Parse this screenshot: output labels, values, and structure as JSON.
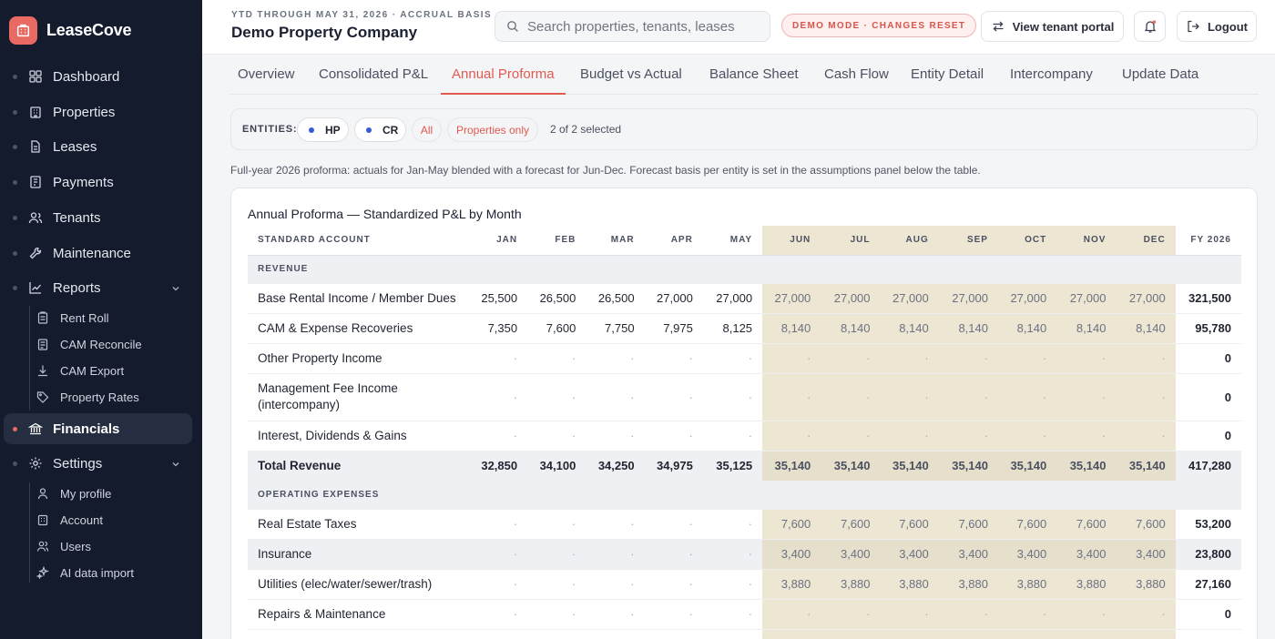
{
  "app": {
    "name": "LeaseCove",
    "accent": "#e86a62",
    "sidebar_bg": "#141b2d"
  },
  "sidebar": {
    "items": [
      {
        "label": "Dashboard",
        "icon": "grid-icon"
      },
      {
        "label": "Properties",
        "icon": "building-icon"
      },
      {
        "label": "Leases",
        "icon": "document-icon"
      },
      {
        "label": "Payments",
        "icon": "receipt-icon"
      },
      {
        "label": "Tenants",
        "icon": "users-icon"
      },
      {
        "label": "Maintenance",
        "icon": "wrench-icon"
      },
      {
        "label": "Reports",
        "icon": "chart-line-icon"
      },
      {
        "label": "Financials",
        "icon": "bank-icon"
      },
      {
        "label": "Settings",
        "icon": "gear-icon"
      }
    ],
    "reports_sub": [
      {
        "label": "Rent Roll",
        "icon": "clipboard-icon"
      },
      {
        "label": "CAM Reconcile",
        "icon": "clipboard-icon"
      },
      {
        "label": "CAM Export",
        "icon": "download-icon"
      },
      {
        "label": "Property Rates",
        "icon": "tag-icon"
      }
    ],
    "settings_sub": [
      {
        "label": "My profile",
        "icon": "user-icon"
      },
      {
        "label": "Account",
        "icon": "building-icon"
      },
      {
        "label": "Users",
        "icon": "users-icon"
      },
      {
        "label": "AI data import",
        "icon": "sparkle-icon"
      }
    ]
  },
  "header": {
    "subtitle": "YTD THROUGH MAY 31, 2026 · ACCRUAL BASIS",
    "title": "Demo Property Company",
    "search_placeholder": "Search properties, tenants, leases",
    "demo_badge": "DEMO MODE · CHANGES RESET",
    "tenant_portal": "View tenant portal",
    "logout": "Logout"
  },
  "tabs": [
    {
      "label": "Overview"
    },
    {
      "label": "Consolidated P&L"
    },
    {
      "label": "Annual Proforma",
      "active": true
    },
    {
      "label": "Budget vs Actual"
    },
    {
      "label": "Balance Sheet"
    },
    {
      "label": "Cash Flow"
    },
    {
      "label": "Entity Detail"
    },
    {
      "label": "Intercompany"
    },
    {
      "label": "Update Data"
    }
  ],
  "entities": {
    "label": "ENTITIES:",
    "chips": [
      "HP",
      "CR"
    ],
    "all_label": "All",
    "properties_only_label": "Properties only",
    "selected_text": "2 of 2 selected"
  },
  "note": "Full-year 2026 proforma: actuals for Jan-May blended with a forecast for Jun-Dec. Forecast basis per entity is set in the assumptions panel below the table.",
  "table": {
    "title": "Annual Proforma — Standardized P&L by Month",
    "account_header": "STANDARD ACCOUNT",
    "months": [
      "JAN",
      "FEB",
      "MAR",
      "APR",
      "MAY",
      "JUN",
      "JUL",
      "AUG",
      "SEP",
      "OCT",
      "NOV",
      "DEC"
    ],
    "fy_header": "FY 2026",
    "forecast_start_index": 5,
    "forecast_color": "#ede6d3",
    "rows": [
      {
        "type": "section",
        "label": "REVENUE"
      },
      {
        "type": "row",
        "label": "Base Rental Income / Member Dues",
        "values": [
          "25,500",
          "26,500",
          "26,500",
          "27,000",
          "27,000",
          "27,000",
          "27,000",
          "27,000",
          "27,000",
          "27,000",
          "27,000",
          "27,000"
        ],
        "fy": "321,500"
      },
      {
        "type": "row",
        "label": "CAM & Expense Recoveries",
        "values": [
          "7,350",
          "7,600",
          "7,750",
          "7,975",
          "8,125",
          "8,140",
          "8,140",
          "8,140",
          "8,140",
          "8,140",
          "8,140",
          "8,140"
        ],
        "fy": "95,780"
      },
      {
        "type": "row",
        "label": "Other Property Income",
        "values": [
          "·",
          "·",
          "·",
          "·",
          "·",
          "·",
          "·",
          "·",
          "·",
          "·",
          "·",
          "·"
        ],
        "fy": "0"
      },
      {
        "type": "row2",
        "label": "Management Fee Income (intercompany)",
        "values": [
          "·",
          "·",
          "·",
          "·",
          "·",
          "·",
          "·",
          "·",
          "·",
          "·",
          "·",
          "·"
        ],
        "fy": "0"
      },
      {
        "type": "row",
        "label": "Interest, Dividends & Gains",
        "values": [
          "·",
          "·",
          "·",
          "·",
          "·",
          "·",
          "·",
          "·",
          "·",
          "·",
          "·",
          "·"
        ],
        "fy": "0"
      },
      {
        "type": "total",
        "label": "Total Revenue",
        "values": [
          "32,850",
          "34,100",
          "34,250",
          "34,975",
          "35,125",
          "35,140",
          "35,140",
          "35,140",
          "35,140",
          "35,140",
          "35,140",
          "35,140"
        ],
        "fy": "417,280"
      },
      {
        "type": "section",
        "label": "OPERATING EXPENSES"
      },
      {
        "type": "row",
        "label": "Real Estate Taxes",
        "values": [
          "·",
          "·",
          "·",
          "·",
          "·",
          "7,600",
          "7,600",
          "7,600",
          "7,600",
          "7,600",
          "7,600",
          "7,600"
        ],
        "fy": "53,200"
      },
      {
        "type": "alt",
        "label": "Insurance",
        "values": [
          "·",
          "·",
          "·",
          "·",
          "·",
          "3,400",
          "3,400",
          "3,400",
          "3,400",
          "3,400",
          "3,400",
          "3,400"
        ],
        "fy": "23,800"
      },
      {
        "type": "row",
        "label": "Utilities (elec/water/sewer/trash)",
        "values": [
          "·",
          "·",
          "·",
          "·",
          "·",
          "3,880",
          "3,880",
          "3,880",
          "3,880",
          "3,880",
          "3,880",
          "3,880"
        ],
        "fy": "27,160"
      },
      {
        "type": "row",
        "label": "Repairs & Maintenance",
        "values": [
          "·",
          "·",
          "·",
          "·",
          "·",
          "·",
          "·",
          "·",
          "·",
          "·",
          "·",
          "·"
        ],
        "fy": "0"
      },
      {
        "type": "row",
        "label": "",
        "values": [
          "",
          "",
          "",
          "",
          "",
          "",
          "",
          "",
          "",
          "",
          "",
          ""
        ],
        "fy": ""
      }
    ]
  }
}
